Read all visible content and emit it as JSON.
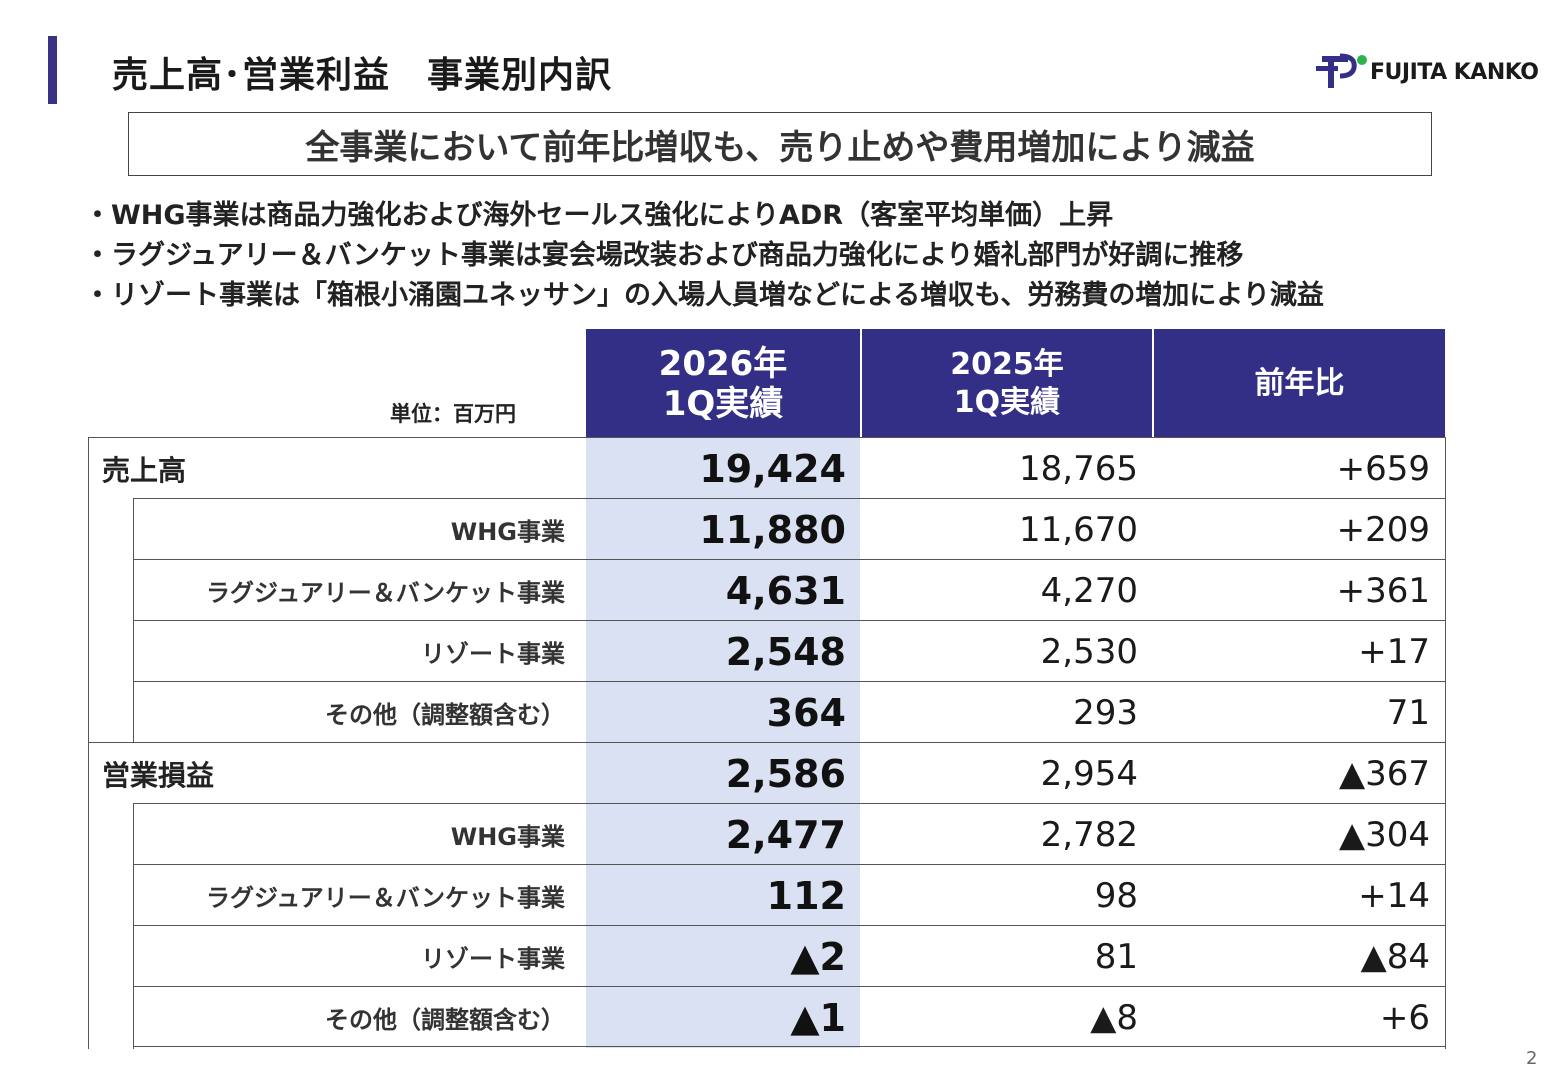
{
  "title": "売上高･営業利益　事業別内訳",
  "logo": {
    "text": "FUJITA KANKO",
    "brand_color": "#332f86",
    "accent_color": "#2db34a"
  },
  "headline": "全事業において前年比増収も、売り止めや費用増加により減益",
  "bullets": [
    "・WHG事業は商品力強化および海外セールス強化によりADR（客室平均単価）上昇",
    "・ラグジュアリー＆バンケット事業は宴会場改装および商品力強化により婚礼部門が好調に推移",
    "・リゾート事業は「箱根小涌園ユネッサン」の入場人員増などによる増収も、労務費の増加により減益"
  ],
  "table": {
    "unit": "単位：百万円",
    "headers": {
      "current_line1": "2026年",
      "current_line2": "1Q実績",
      "previous_line1": "2025年",
      "previous_line2": "1Q実績",
      "change": "前年比"
    },
    "rows": [
      {
        "label": "売上高",
        "current": "19,424",
        "previous": "18,765",
        "change": "+659"
      },
      {
        "label": "WHG事業",
        "current": "11,880",
        "previous": "11,670",
        "change": "+209"
      },
      {
        "label": "ラグジュアリー＆バンケット事業",
        "current": "4,631",
        "previous": "4,270",
        "change": "+361"
      },
      {
        "label": "リゾート事業",
        "current": "2,548",
        "previous": "2,530",
        "change": "+17"
      },
      {
        "label": "その他（調整額含む）",
        "current": "364",
        "previous": "293",
        "change": "71"
      },
      {
        "label": "営業損益",
        "current": "2,586",
        "previous": "2,954",
        "change": "▲367"
      },
      {
        "label": "WHG事業",
        "current": "2,477",
        "previous": "2,782",
        "change": "▲304"
      },
      {
        "label": "ラグジュアリー＆バンケット事業",
        "current": "112",
        "previous": "98",
        "change": "+14"
      },
      {
        "label": "リゾート事業",
        "current": "▲2",
        "previous": "81",
        "change": "▲84"
      },
      {
        "label": "その他（調整額含む）",
        "current": "▲1",
        "previous": "▲8",
        "change": "+6"
      }
    ]
  },
  "colors": {
    "header_bg": "#332f86",
    "highlight_col": "#d9e1f2",
    "accent_bar": "#3a3383"
  },
  "page_number": "2"
}
